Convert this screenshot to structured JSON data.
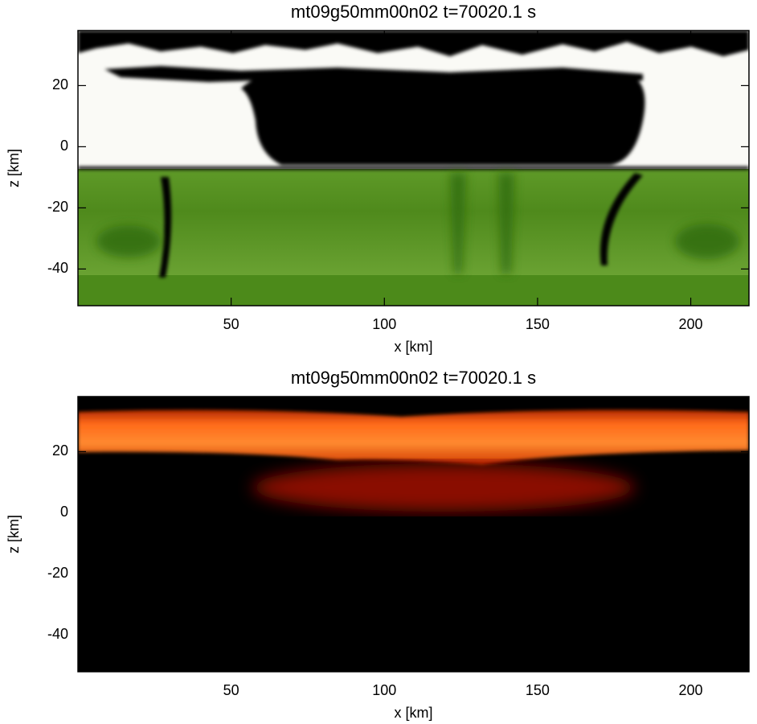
{
  "chart_data": [
    {
      "type": "heatmap",
      "title": "mt09g50mm00n02  t=70020.1 s",
      "xlabel": "x [km]",
      "ylabel": "z [km]",
      "xlim": [
        0,
        219
      ],
      "xticks": [
        50,
        100,
        150,
        200
      ],
      "ylim": [
        -52,
        38
      ],
      "yticks": [
        -40,
        -20,
        0,
        20
      ]
    },
    {
      "type": "heatmap",
      "title": "mt09g50mm00n02  t=70020.1 s",
      "xlabel": "x [km]",
      "ylabel": "z [km]",
      "xlim": [
        0,
        219
      ],
      "xticks": [
        50,
        100,
        150,
        200
      ],
      "ylim": [
        -52,
        38
      ],
      "yticks": [
        -40,
        -20,
        0,
        20
      ]
    }
  ]
}
